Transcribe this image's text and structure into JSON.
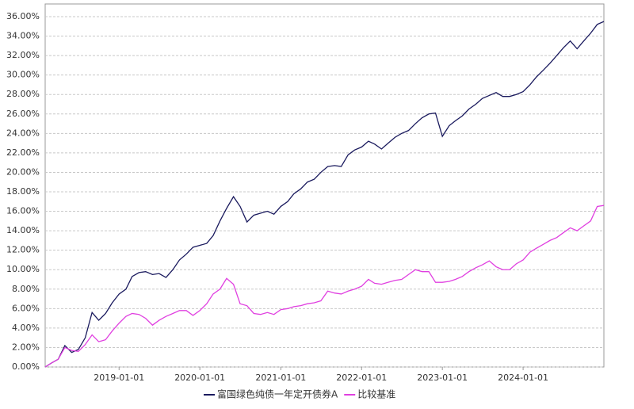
{
  "chart_data": {
    "type": "line",
    "x": [
      "2018-02-01",
      "2018-03-01",
      "2018-04-01",
      "2018-05-01",
      "2018-06-01",
      "2018-07-01",
      "2018-08-01",
      "2018-09-01",
      "2018-10-01",
      "2018-11-01",
      "2018-12-01",
      "2019-01-01",
      "2019-02-01",
      "2019-03-01",
      "2019-04-01",
      "2019-05-01",
      "2019-06-01",
      "2019-07-01",
      "2019-08-01",
      "2019-09-01",
      "2019-10-01",
      "2019-11-01",
      "2019-12-01",
      "2020-01-01",
      "2020-02-01",
      "2020-03-01",
      "2020-04-01",
      "2020-05-01",
      "2020-06-01",
      "2020-07-01",
      "2020-08-01",
      "2020-09-01",
      "2020-10-01",
      "2020-11-01",
      "2020-12-01",
      "2021-01-01",
      "2021-02-01",
      "2021-03-01",
      "2021-04-01",
      "2021-05-01",
      "2021-06-01",
      "2021-07-01",
      "2021-08-01",
      "2021-09-01",
      "2021-10-01",
      "2021-11-01",
      "2021-12-01",
      "2022-01-01",
      "2022-02-01",
      "2022-03-01",
      "2022-04-01",
      "2022-05-01",
      "2022-06-01",
      "2022-07-01",
      "2022-08-01",
      "2022-09-01",
      "2022-10-01",
      "2022-11-01",
      "2022-12-01",
      "2023-01-01",
      "2023-02-01",
      "2023-03-01",
      "2023-04-01",
      "2023-05-01",
      "2023-06-01",
      "2023-07-01",
      "2023-08-01",
      "2023-09-01",
      "2023-10-01",
      "2023-11-01",
      "2023-12-01",
      "2024-01-01",
      "2024-02-01",
      "2024-03-01",
      "2024-04-01",
      "2024-05-01",
      "2024-06-01",
      "2024-07-01",
      "2024-08-01",
      "2024-09-01",
      "2024-10-01",
      "2024-11-01",
      "2024-12-01",
      "2024-12-31"
    ],
    "series": [
      {
        "name": "富国绿色纯债一年定开债券A",
        "color": "#1a1a5e",
        "values": [
          0,
          0.4,
          0.8,
          2.2,
          1.5,
          1.8,
          3.0,
          5.6,
          4.8,
          5.5,
          6.6,
          7.5,
          8.0,
          9.3,
          9.7,
          9.8,
          9.5,
          9.6,
          9.2,
          10.0,
          11.0,
          11.6,
          12.3,
          12.5,
          12.7,
          13.5,
          15.0,
          16.3,
          17.5,
          16.5,
          14.9,
          15.6,
          15.8,
          16.0,
          15.7,
          16.5,
          17.0,
          17.8,
          18.3,
          19.0,
          19.3,
          20.0,
          20.6,
          20.7,
          20.6,
          21.8,
          22.3,
          22.6,
          23.2,
          22.9,
          22.4,
          23.0,
          23.6,
          24.0,
          24.3,
          25.0,
          25.6,
          26.0,
          26.1,
          23.7,
          24.8,
          25.3,
          25.8,
          26.5,
          27.0,
          27.6,
          27.9,
          28.2,
          27.8,
          27.8,
          28.0,
          28.3,
          29.0,
          29.8,
          30.5,
          31.2,
          32.0,
          32.8,
          33.5,
          32.7,
          33.5,
          34.3,
          35.2,
          35.5
        ]
      },
      {
        "name": "比较基准",
        "color": "#e040e0",
        "values": [
          0,
          0.4,
          0.8,
          2.0,
          1.7,
          1.6,
          2.3,
          3.3,
          2.6,
          2.8,
          3.7,
          4.5,
          5.2,
          5.5,
          5.4,
          5.0,
          4.3,
          4.8,
          5.2,
          5.5,
          5.8,
          5.8,
          5.3,
          5.8,
          6.5,
          7.5,
          8.0,
          9.1,
          8.5,
          6.5,
          6.3,
          5.5,
          5.4,
          5.6,
          5.4,
          5.9,
          6.0,
          6.2,
          6.3,
          6.5,
          6.6,
          6.8,
          7.8,
          7.6,
          7.5,
          7.8,
          8.0,
          8.3,
          9.0,
          8.6,
          8.5,
          8.7,
          8.9,
          9.0,
          9.5,
          10.0,
          9.8,
          9.8,
          8.7,
          8.7,
          8.8,
          9.0,
          9.3,
          9.8,
          10.2,
          10.5,
          10.9,
          10.3,
          10.0,
          10.0,
          10.6,
          11.0,
          11.8,
          12.2,
          12.6,
          13.0,
          13.3,
          13.8,
          14.3,
          14.0,
          14.5,
          15.0,
          16.5,
          16.6
        ]
      }
    ],
    "xlim": [
      "2018-02-01",
      "2024-12-31"
    ],
    "xticks": [
      "2019-01-01",
      "2020-01-01",
      "2021-01-01",
      "2022-01-01",
      "2023-01-01",
      "2024-01-01"
    ],
    "ylim": [
      0,
      36
    ],
    "yticks": [
      {
        "value": 0,
        "label": "0.00%"
      },
      {
        "value": 2,
        "label": "2.00%"
      },
      {
        "value": 4,
        "label": "4.00%"
      },
      {
        "value": 6,
        "label": "6.00%"
      },
      {
        "value": 8,
        "label": "8.00%"
      },
      {
        "value": 10,
        "label": "10.00%"
      },
      {
        "value": 12,
        "label": "12.00%"
      },
      {
        "value": 14,
        "label": "14.00%"
      },
      {
        "value": 16,
        "label": "16.00%"
      },
      {
        "value": 18,
        "label": "18.00%"
      },
      {
        "value": 20,
        "label": "20.00%"
      },
      {
        "value": 22,
        "label": "22.00%"
      },
      {
        "value": 24,
        "label": "24.00%"
      },
      {
        "value": 26,
        "label": "26.00%"
      },
      {
        "value": 28,
        "label": "28.00%"
      },
      {
        "value": 30,
        "label": "30.00%"
      },
      {
        "value": 32,
        "label": "32.00%"
      },
      {
        "value": 34,
        "label": "34.00%"
      },
      {
        "value": 36,
        "label": "36.00%"
      }
    ],
    "grid": true,
    "legend": "bottom"
  }
}
